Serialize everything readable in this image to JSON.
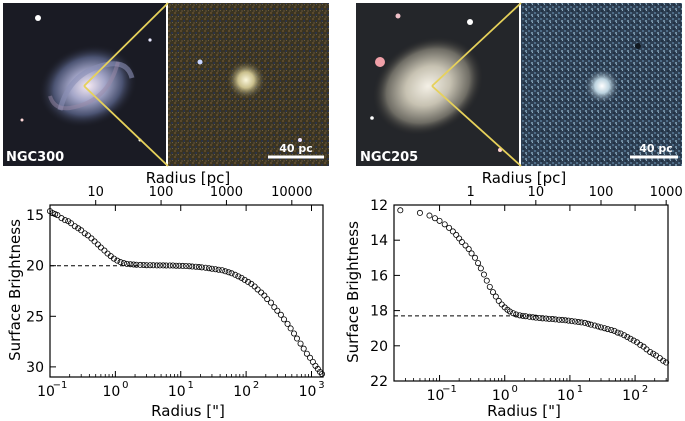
{
  "panels": [
    {
      "galaxy_label": "NGC300",
      "scalebar_label": "40 pc",
      "core_color": "#f2efcf",
      "chart_data": {
        "type": "scatter",
        "title": "",
        "xlabel": "Radius [\"]",
        "ylabel": "Surface Brightness",
        "top_xlabel": "Radius [pc]",
        "x_scale": "log",
        "xlim": [
          0.1,
          1500
        ],
        "ylim": [
          31,
          14
        ],
        "y_inverted": true,
        "x_ticks": [
          {
            "value": 0.1,
            "label": "10",
            "exp": "−1"
          },
          {
            "value": 1,
            "label": "10",
            "exp": "0"
          },
          {
            "value": 10,
            "label": "10",
            "exp": "1"
          },
          {
            "value": 100,
            "label": "10",
            "exp": "2"
          },
          {
            "value": 1000,
            "label": "10",
            "exp": "3"
          }
        ],
        "top_ticks": [
          {
            "value": 0.5,
            "label": "10"
          },
          {
            "value": 5,
            "label": "100"
          },
          {
            "value": 50,
            "label": "1000"
          },
          {
            "value": 500,
            "label": "10000"
          }
        ],
        "y_ticks": [
          15,
          20,
          25,
          30
        ],
        "reference_line": {
          "y": 20.0,
          "x_from": 0.1,
          "x_to": 2.5
        },
        "marker": "open-circle",
        "series": [
          {
            "x": [
              0.1,
              0.11,
              0.12,
              0.13,
              0.15,
              0.17,
              0.19,
              0.21,
              0.24,
              0.27,
              0.3,
              0.34,
              0.38,
              0.43,
              0.48,
              0.54,
              0.6,
              0.68,
              0.76,
              0.85,
              0.95,
              1.07,
              1.2,
              1.35,
              1.5,
              1.7,
              1.9,
              2.1,
              2.4,
              2.7,
              3,
              3.4,
              3.8,
              4.3,
              4.8,
              5.4,
              6,
              6.8,
              7.6,
              8.5,
              9.5,
              10.7,
              12,
              13.5,
              15,
              17,
              19,
              21,
              24,
              27,
              30,
              34,
              38,
              43,
              48,
              54,
              60,
              68,
              76,
              85,
              95,
              107,
              120,
              135,
              150,
              170,
              190,
              210,
              240,
              270,
              300,
              340,
              380,
              430,
              480,
              540,
              600,
              680,
              760,
              850,
              950,
              1050,
              1150,
              1250,
              1350,
              1450
            ],
            "y": [
              14.6,
              14.8,
              14.9,
              15,
              15.3,
              15.5,
              15.6,
              15.8,
              16.1,
              16.3,
              16.5,
              16.8,
              17,
              17.3,
              17.6,
              17.9,
              18.2,
              18.5,
              18.8,
              19.05,
              19.3,
              19.5,
              19.65,
              19.75,
              19.82,
              19.86,
              19.88,
              19.9,
              19.92,
              19.93,
              19.95,
              19.95,
              19.96,
              19.97,
              19.97,
              19.97,
              19.98,
              19.98,
              19.98,
              20,
              20,
              20.02,
              20.03,
              20.05,
              20.08,
              20.1,
              20.13,
              20.16,
              20.2,
              20.25,
              20.3,
              20.35,
              20.4,
              20.45,
              20.55,
              20.65,
              20.75,
              20.9,
              21.05,
              21.2,
              21.4,
              21.6,
              21.8,
              22.05,
              22.35,
              22.65,
              22.95,
              23.3,
              23.65,
              24.1,
              24.45,
              24.85,
              25.3,
              25.75,
              26.2,
              26.7,
              27.2,
              27.7,
              28.2,
              28.7,
              29.1,
              29.5,
              29.9,
              30.2,
              30.5,
              30.7
            ]
          }
        ]
      }
    },
    {
      "galaxy_label": "NGC205",
      "scalebar_label": "40 pc",
      "core_color": "#eef6f8",
      "chart_data": {
        "type": "scatter",
        "title": "",
        "xlabel": "Radius [\"]",
        "ylabel": "Surface Brightness",
        "top_xlabel": "Radius [pc]",
        "x_scale": "log",
        "xlim": [
          0.02,
          320
        ],
        "ylim": [
          22,
          12
        ],
        "y_inverted": true,
        "x_ticks": [
          {
            "value": 0.1,
            "label": "10",
            "exp": "−1"
          },
          {
            "value": 1,
            "label": "10",
            "exp": "0"
          },
          {
            "value": 10,
            "label": "10",
            "exp": "1"
          },
          {
            "value": 100,
            "label": "10",
            "exp": "2"
          }
        ],
        "top_ticks": [
          {
            "value": 0.3,
            "label": "1"
          },
          {
            "value": 3,
            "label": "10"
          },
          {
            "value": 30,
            "label": "100"
          },
          {
            "value": 300,
            "label": "1000"
          }
        ],
        "y_ticks": [
          12,
          14,
          16,
          18,
          20,
          22
        ],
        "reference_line": {
          "y": 18.3,
          "x_from": 0.02,
          "x_to": 4
        },
        "marker": "open-circle",
        "series": [
          {
            "x": [
              0.025,
              0.05,
              0.07,
              0.085,
              0.1,
              0.12,
              0.14,
              0.16,
              0.18,
              0.2,
              0.22,
              0.25,
              0.28,
              0.31,
              0.35,
              0.39,
              0.43,
              0.48,
              0.53,
              0.59,
              0.66,
              0.73,
              0.81,
              0.9,
              1,
              1.1,
              1.2,
              1.35,
              1.5,
              1.7,
              1.9,
              2.1,
              2.4,
              2.7,
              3,
              3.4,
              3.8,
              4.3,
              4.8,
              5.4,
              6,
              6.8,
              7.6,
              8.5,
              9.5,
              10.7,
              12,
              13.5,
              15,
              17,
              19,
              21,
              24,
              27,
              30,
              34,
              38,
              43,
              48,
              54,
              60,
              68,
              76,
              85,
              95,
              107,
              120,
              135,
              150,
              170,
              190,
              210,
              240,
              270,
              300
            ],
            "y": [
              12.3,
              12.45,
              12.6,
              12.75,
              12.9,
              13.1,
              13.3,
              13.5,
              13.7,
              13.9,
              14.1,
              14.3,
              14.5,
              14.75,
              15,
              15.3,
              15.6,
              15.95,
              16.3,
              16.65,
              16.95,
              17.2,
              17.45,
              17.65,
              17.82,
              17.95,
              18.05,
              18.15,
              18.22,
              18.27,
              18.3,
              18.32,
              18.35,
              18.38,
              18.4,
              18.42,
              18.44,
              18.45,
              18.47,
              18.48,
              18.5,
              18.52,
              18.53,
              18.55,
              18.57,
              18.6,
              18.62,
              18.65,
              18.67,
              18.7,
              18.75,
              18.8,
              18.85,
              18.9,
              18.95,
              19,
              19.05,
              19.1,
              19.15,
              19.25,
              19.3,
              19.4,
              19.5,
              19.6,
              19.7,
              19.8,
              19.95,
              20.05,
              20.2,
              20.35,
              20.45,
              20.55,
              20.7,
              20.85,
              20.95
            ]
          }
        ]
      }
    }
  ]
}
